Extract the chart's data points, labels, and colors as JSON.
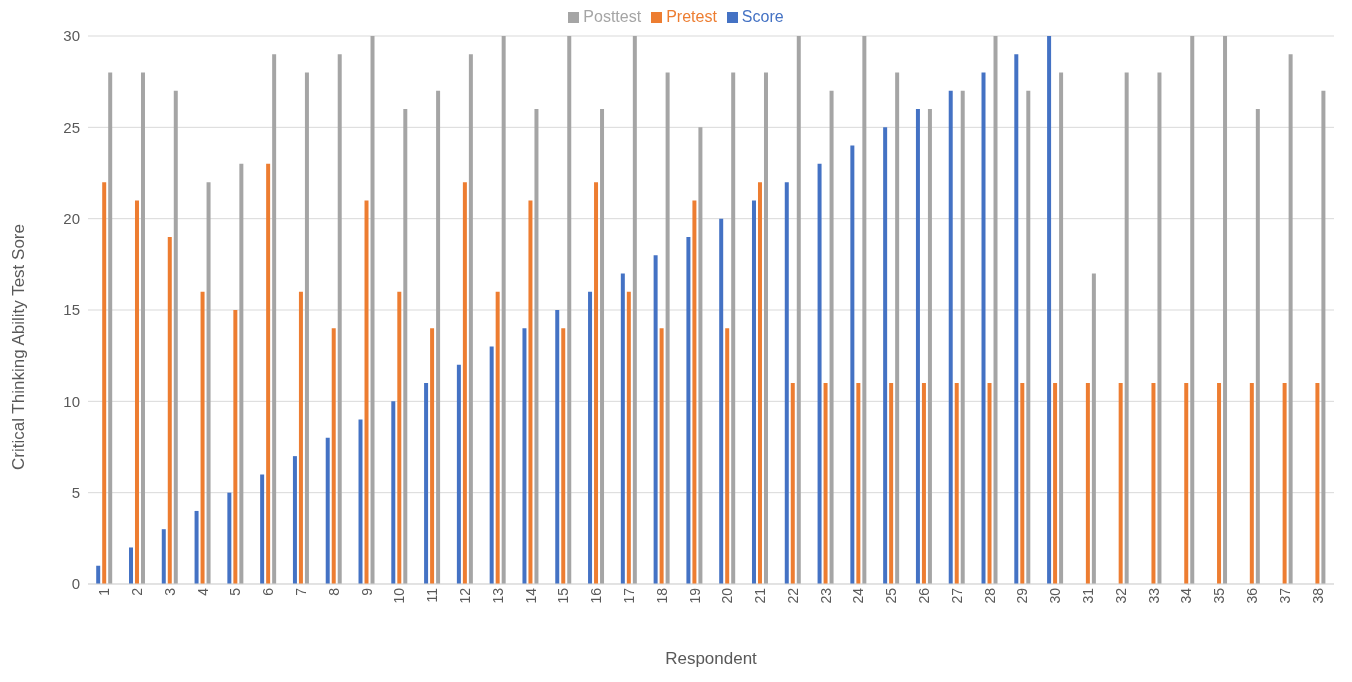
{
  "chart_data": {
    "type": "bar",
    "xlabel": "Respondent",
    "ylabel": "Critical Thinking Ability Test Sore",
    "categories": [
      "1",
      "2",
      "3",
      "4",
      "5",
      "6",
      "7",
      "8",
      "9",
      "10",
      "11",
      "12",
      "13",
      "14",
      "15",
      "16",
      "17",
      "18",
      "19",
      "20",
      "21",
      "22",
      "23",
      "24",
      "25",
      "26",
      "27",
      "28",
      "29",
      "30",
      "31",
      "32",
      "33",
      "34",
      "35",
      "36",
      "37",
      "38"
    ],
    "series": [
      {
        "name": "Score",
        "color": "#4472c4",
        "values": [
          1,
          2,
          3,
          4,
          5,
          6,
          7,
          8,
          9,
          10,
          11,
          12,
          13,
          14,
          15,
          16,
          17,
          18,
          19,
          20,
          21,
          22,
          23,
          24,
          25,
          26,
          27,
          28,
          29,
          30,
          null,
          null,
          null,
          null,
          null,
          null,
          null,
          null
        ]
      },
      {
        "name": "Pretest",
        "color": "#ed7d31",
        "values": [
          22,
          21,
          19,
          16,
          15,
          23,
          16,
          14,
          21,
          16,
          14,
          22,
          16,
          21,
          14,
          22,
          16,
          14,
          21,
          14,
          22,
          11,
          11,
          11,
          11,
          11,
          11,
          11,
          11,
          11,
          11,
          11,
          11,
          11,
          11,
          11,
          11,
          11
        ]
      },
      {
        "name": "Posttest",
        "color": "#a5a5a5",
        "values": [
          28,
          28,
          27,
          22,
          23,
          29,
          28,
          29,
          30,
          26,
          27,
          29,
          30,
          26,
          30,
          26,
          30,
          28,
          25,
          28,
          28,
          30,
          27,
          30,
          28,
          26,
          27,
          30,
          27,
          28,
          17,
          28,
          28,
          30,
          30,
          26,
          29,
          27
        ]
      }
    ],
    "ylim": [
      0,
      30
    ],
    "yticks": [
      0,
      5,
      10,
      15,
      20,
      25,
      30
    ],
    "grid": "y",
    "legend": "top"
  }
}
